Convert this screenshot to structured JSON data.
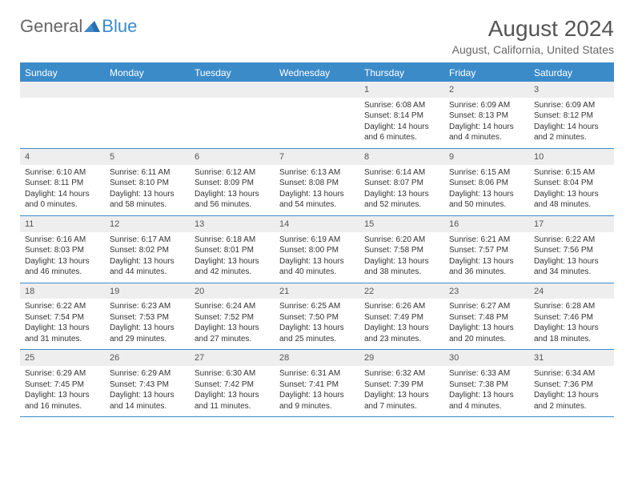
{
  "logo": {
    "general": "General",
    "blue": "Blue"
  },
  "title": "August 2024",
  "location": "August, California, United States",
  "colors": {
    "accent": "#3b8bc9",
    "header_text": "#ffffff",
    "daynum_bg": "#eeeeee",
    "text": "#333333",
    "muted": "#666666",
    "background": "#ffffff"
  },
  "day_names": [
    "Sunday",
    "Monday",
    "Tuesday",
    "Wednesday",
    "Thursday",
    "Friday",
    "Saturday"
  ],
  "weeks": [
    [
      null,
      null,
      null,
      null,
      {
        "n": "1",
        "sr": "Sunrise: 6:08 AM",
        "ss": "Sunset: 8:14 PM",
        "d1": "Daylight: 14 hours",
        "d2": "and 6 minutes."
      },
      {
        "n": "2",
        "sr": "Sunrise: 6:09 AM",
        "ss": "Sunset: 8:13 PM",
        "d1": "Daylight: 14 hours",
        "d2": "and 4 minutes."
      },
      {
        "n": "3",
        "sr": "Sunrise: 6:09 AM",
        "ss": "Sunset: 8:12 PM",
        "d1": "Daylight: 14 hours",
        "d2": "and 2 minutes."
      }
    ],
    [
      {
        "n": "4",
        "sr": "Sunrise: 6:10 AM",
        "ss": "Sunset: 8:11 PM",
        "d1": "Daylight: 14 hours",
        "d2": "and 0 minutes."
      },
      {
        "n": "5",
        "sr": "Sunrise: 6:11 AM",
        "ss": "Sunset: 8:10 PM",
        "d1": "Daylight: 13 hours",
        "d2": "and 58 minutes."
      },
      {
        "n": "6",
        "sr": "Sunrise: 6:12 AM",
        "ss": "Sunset: 8:09 PM",
        "d1": "Daylight: 13 hours",
        "d2": "and 56 minutes."
      },
      {
        "n": "7",
        "sr": "Sunrise: 6:13 AM",
        "ss": "Sunset: 8:08 PM",
        "d1": "Daylight: 13 hours",
        "d2": "and 54 minutes."
      },
      {
        "n": "8",
        "sr": "Sunrise: 6:14 AM",
        "ss": "Sunset: 8:07 PM",
        "d1": "Daylight: 13 hours",
        "d2": "and 52 minutes."
      },
      {
        "n": "9",
        "sr": "Sunrise: 6:15 AM",
        "ss": "Sunset: 8:06 PM",
        "d1": "Daylight: 13 hours",
        "d2": "and 50 minutes."
      },
      {
        "n": "10",
        "sr": "Sunrise: 6:15 AM",
        "ss": "Sunset: 8:04 PM",
        "d1": "Daylight: 13 hours",
        "d2": "and 48 minutes."
      }
    ],
    [
      {
        "n": "11",
        "sr": "Sunrise: 6:16 AM",
        "ss": "Sunset: 8:03 PM",
        "d1": "Daylight: 13 hours",
        "d2": "and 46 minutes."
      },
      {
        "n": "12",
        "sr": "Sunrise: 6:17 AM",
        "ss": "Sunset: 8:02 PM",
        "d1": "Daylight: 13 hours",
        "d2": "and 44 minutes."
      },
      {
        "n": "13",
        "sr": "Sunrise: 6:18 AM",
        "ss": "Sunset: 8:01 PM",
        "d1": "Daylight: 13 hours",
        "d2": "and 42 minutes."
      },
      {
        "n": "14",
        "sr": "Sunrise: 6:19 AM",
        "ss": "Sunset: 8:00 PM",
        "d1": "Daylight: 13 hours",
        "d2": "and 40 minutes."
      },
      {
        "n": "15",
        "sr": "Sunrise: 6:20 AM",
        "ss": "Sunset: 7:58 PM",
        "d1": "Daylight: 13 hours",
        "d2": "and 38 minutes."
      },
      {
        "n": "16",
        "sr": "Sunrise: 6:21 AM",
        "ss": "Sunset: 7:57 PM",
        "d1": "Daylight: 13 hours",
        "d2": "and 36 minutes."
      },
      {
        "n": "17",
        "sr": "Sunrise: 6:22 AM",
        "ss": "Sunset: 7:56 PM",
        "d1": "Daylight: 13 hours",
        "d2": "and 34 minutes."
      }
    ],
    [
      {
        "n": "18",
        "sr": "Sunrise: 6:22 AM",
        "ss": "Sunset: 7:54 PM",
        "d1": "Daylight: 13 hours",
        "d2": "and 31 minutes."
      },
      {
        "n": "19",
        "sr": "Sunrise: 6:23 AM",
        "ss": "Sunset: 7:53 PM",
        "d1": "Daylight: 13 hours",
        "d2": "and 29 minutes."
      },
      {
        "n": "20",
        "sr": "Sunrise: 6:24 AM",
        "ss": "Sunset: 7:52 PM",
        "d1": "Daylight: 13 hours",
        "d2": "and 27 minutes."
      },
      {
        "n": "21",
        "sr": "Sunrise: 6:25 AM",
        "ss": "Sunset: 7:50 PM",
        "d1": "Daylight: 13 hours",
        "d2": "and 25 minutes."
      },
      {
        "n": "22",
        "sr": "Sunrise: 6:26 AM",
        "ss": "Sunset: 7:49 PM",
        "d1": "Daylight: 13 hours",
        "d2": "and 23 minutes."
      },
      {
        "n": "23",
        "sr": "Sunrise: 6:27 AM",
        "ss": "Sunset: 7:48 PM",
        "d1": "Daylight: 13 hours",
        "d2": "and 20 minutes."
      },
      {
        "n": "24",
        "sr": "Sunrise: 6:28 AM",
        "ss": "Sunset: 7:46 PM",
        "d1": "Daylight: 13 hours",
        "d2": "and 18 minutes."
      }
    ],
    [
      {
        "n": "25",
        "sr": "Sunrise: 6:29 AM",
        "ss": "Sunset: 7:45 PM",
        "d1": "Daylight: 13 hours",
        "d2": "and 16 minutes."
      },
      {
        "n": "26",
        "sr": "Sunrise: 6:29 AM",
        "ss": "Sunset: 7:43 PM",
        "d1": "Daylight: 13 hours",
        "d2": "and 14 minutes."
      },
      {
        "n": "27",
        "sr": "Sunrise: 6:30 AM",
        "ss": "Sunset: 7:42 PM",
        "d1": "Daylight: 13 hours",
        "d2": "and 11 minutes."
      },
      {
        "n": "28",
        "sr": "Sunrise: 6:31 AM",
        "ss": "Sunset: 7:41 PM",
        "d1": "Daylight: 13 hours",
        "d2": "and 9 minutes."
      },
      {
        "n": "29",
        "sr": "Sunrise: 6:32 AM",
        "ss": "Sunset: 7:39 PM",
        "d1": "Daylight: 13 hours",
        "d2": "and 7 minutes."
      },
      {
        "n": "30",
        "sr": "Sunrise: 6:33 AM",
        "ss": "Sunset: 7:38 PM",
        "d1": "Daylight: 13 hours",
        "d2": "and 4 minutes."
      },
      {
        "n": "31",
        "sr": "Sunrise: 6:34 AM",
        "ss": "Sunset: 7:36 PM",
        "d1": "Daylight: 13 hours",
        "d2": "and 2 minutes."
      }
    ]
  ]
}
